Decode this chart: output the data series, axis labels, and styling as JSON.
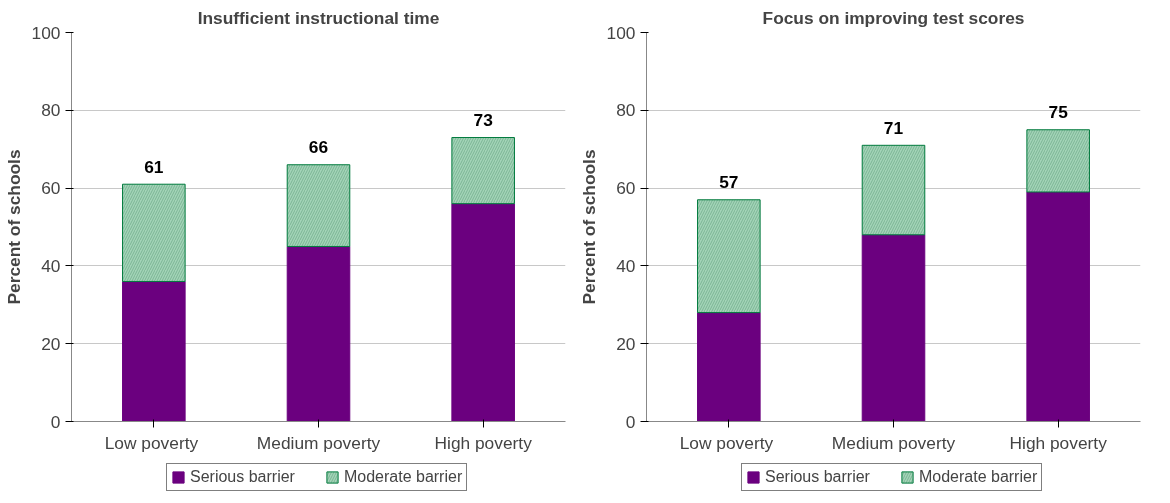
{
  "chart_data": [
    {
      "type": "bar",
      "title": "Insufficient instructional time",
      "ylabel": "Percent of schools",
      "categories": [
        "Low  poverty",
        "Medium poverty",
        "High poverty"
      ],
      "stacked": true,
      "series": [
        {
          "name": "Serious barrier",
          "color": "#6b007f",
          "values": [
            36,
            45,
            56
          ]
        },
        {
          "name": "Moderate barrier",
          "color": "#a3d4b8",
          "values": [
            25,
            21,
            17
          ]
        }
      ],
      "totals": [
        "61",
        "66",
        "73"
      ],
      "ylim": [
        0,
        100
      ],
      "yticks": [
        0,
        20,
        40,
        60,
        80,
        100
      ],
      "grid": "y",
      "legend": "bottom"
    },
    {
      "type": "bar",
      "title": "Focus on improving test scores",
      "ylabel": "Percent of schools",
      "categories": [
        "Low  poverty",
        "Medium poverty",
        "High poverty"
      ],
      "stacked": true,
      "series": [
        {
          "name": "Serious barrier",
          "color": "#6b007f",
          "values": [
            28,
            48,
            59
          ]
        },
        {
          "name": "Moderate barrier",
          "color": "#a3d4b8",
          "values": [
            29,
            23,
            16
          ]
        }
      ],
      "totals": [
        "57",
        "71",
        "75"
      ],
      "ylim": [
        0,
        100
      ],
      "yticks": [
        0,
        20,
        40,
        60,
        80,
        100
      ],
      "grid": "y",
      "legend": "bottom"
    }
  ]
}
